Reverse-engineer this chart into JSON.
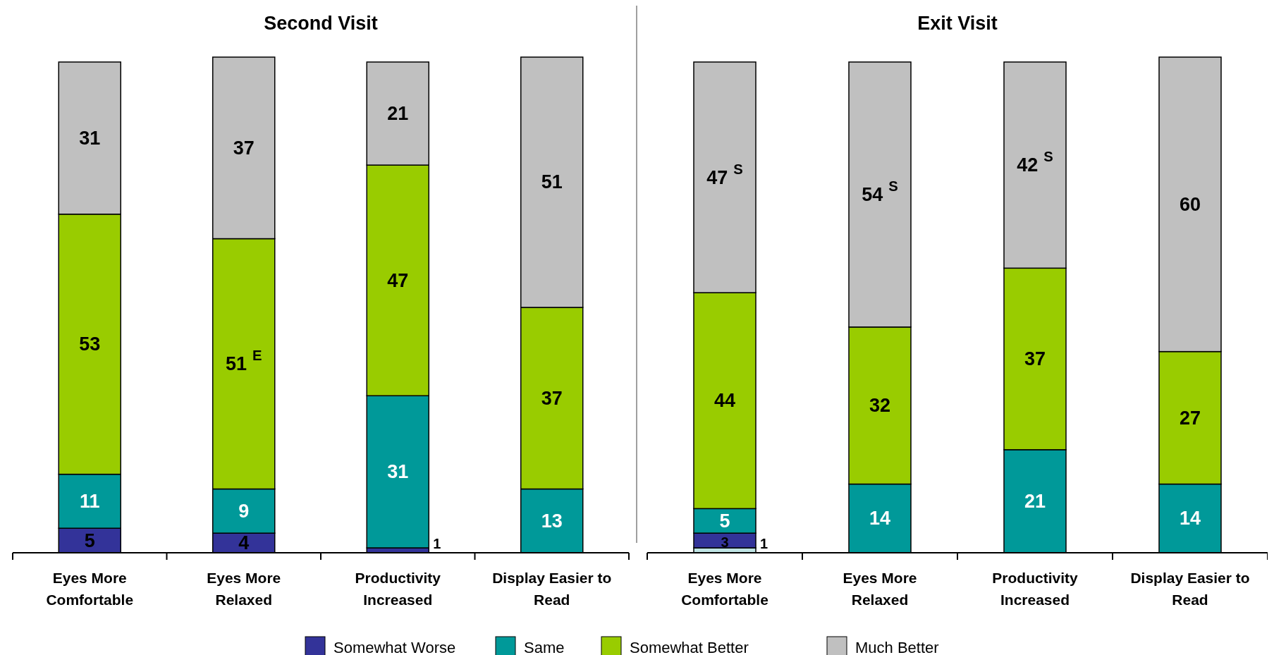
{
  "chart_data": [
    {
      "type": "bar",
      "title": "Second Visit",
      "stacked": true,
      "ylim": [
        0,
        101
      ],
      "tick_labels": "x",
      "legend": "bottom",
      "categories": [
        "Eyes More Comfortable",
        "Eyes More Relaxed",
        "Productivity Increased",
        "Display Easier to Read"
      ],
      "series": [
        {
          "name": "Somewhat Worse",
          "color": "#333399",
          "values": [
            5,
            4,
            1,
            null
          ],
          "value_labels": [
            "5",
            "4",
            "1",
            null
          ]
        },
        {
          "name": "Same",
          "color": "#009999",
          "values": [
            11,
            9,
            31,
            13
          ],
          "value_labels": [
            "11",
            "9",
            "31",
            "13"
          ]
        },
        {
          "name": "Somewhat Better",
          "color": "#99cc00",
          "values": [
            53,
            51,
            47,
            37
          ],
          "value_labels": [
            "53",
            "51$^{E}$",
            "47",
            "37"
          ]
        },
        {
          "name": "Much Better",
          "color": "#c0c0c0",
          "values": [
            31,
            37,
            21,
            51
          ],
          "value_labels": [
            "31",
            "37",
            "21",
            "51"
          ]
        }
      ]
    },
    {
      "type": "bar",
      "title": "Exit Visit",
      "stacked": true,
      "ylim": [
        0,
        101
      ],
      "tick_labels": "x",
      "legend": "bottom",
      "categories": [
        "Eyes More Comfortable",
        "Eyes More Relaxed",
        "Productivity Increased",
        "Display Easier to Read"
      ],
      "series": [
        {
          "color": "#c0e4e4",
          "values": [
            1,
            null,
            null,
            null
          ],
          "value_labels": [
            "1",
            null,
            null,
            null
          ]
        },
        {
          "name": "Somewhat Worse",
          "color": "#333399",
          "values": [
            3,
            null,
            null,
            null
          ],
          "value_labels": [
            "3",
            null,
            null,
            null
          ]
        },
        {
          "name": "Same",
          "color": "#009999",
          "values": [
            5,
            14,
            21,
            14
          ],
          "value_labels": [
            "5",
            "14",
            "21",
            "14"
          ]
        },
        {
          "name": "Somewhat Better",
          "color": "#99cc00",
          "values": [
            44,
            32,
            37,
            27
          ],
          "value_labels": [
            "44",
            "32",
            "37",
            "27"
          ]
        },
        {
          "name": "Much Better",
          "color": "#c0c0c0",
          "values": [
            47,
            54,
            42,
            60
          ],
          "value_labels": [
            "47$^{S}$",
            "54$^{S}$",
            "42$^{S}$",
            "60"
          ]
        }
      ]
    }
  ]
}
